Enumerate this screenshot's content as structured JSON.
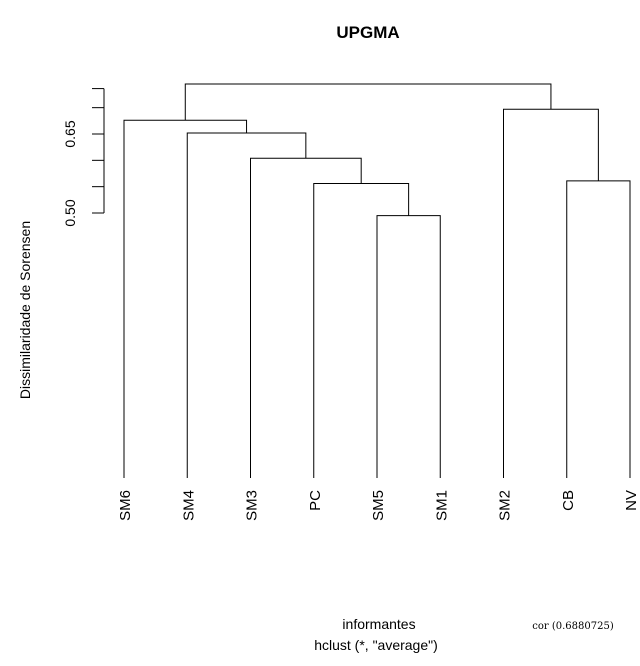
{
  "chart_data": {
    "type": "dendrogram",
    "title": "UPGMA",
    "ylabel": "Dissimilaridade de Sorensen",
    "xlabel": "informantes",
    "subtitle": "hclust (*, \"average\")",
    "annotation": "cor (0.6880725)",
    "y_ticks": [
      0.5,
      0.65
    ],
    "y_tick_labels": [
      "0.50",
      "0.65"
    ],
    "y_axis_range": [
      0.5,
      0.74
    ],
    "leaves": [
      "SM6",
      "SM4",
      "SM3",
      "PC",
      "SM5",
      "SM1",
      "SM2",
      "CB",
      "NV"
    ],
    "merges": [
      {
        "left": "SM5",
        "right": "SM1",
        "height": 0.495
      },
      {
        "left": "PC",
        "right": "SM5+SM1",
        "height": 0.556
      },
      {
        "left": "SM3",
        "right": "PC+SM5+SM1",
        "height": 0.604
      },
      {
        "left": "SM4",
        "right": "SM3+PC+SM5+SM1",
        "height": 0.652
      },
      {
        "left": "SM6",
        "right": "SM4+SM3+PC+SM5+SM1",
        "height": 0.676
      },
      {
        "left": "CB",
        "right": "NV",
        "height": 0.561
      },
      {
        "left": "SM2",
        "right": "CB+NV",
        "height": 0.697
      },
      {
        "left": "SM6..SM1",
        "right": "SM2+CB+NV",
        "height": 0.745
      }
    ]
  }
}
